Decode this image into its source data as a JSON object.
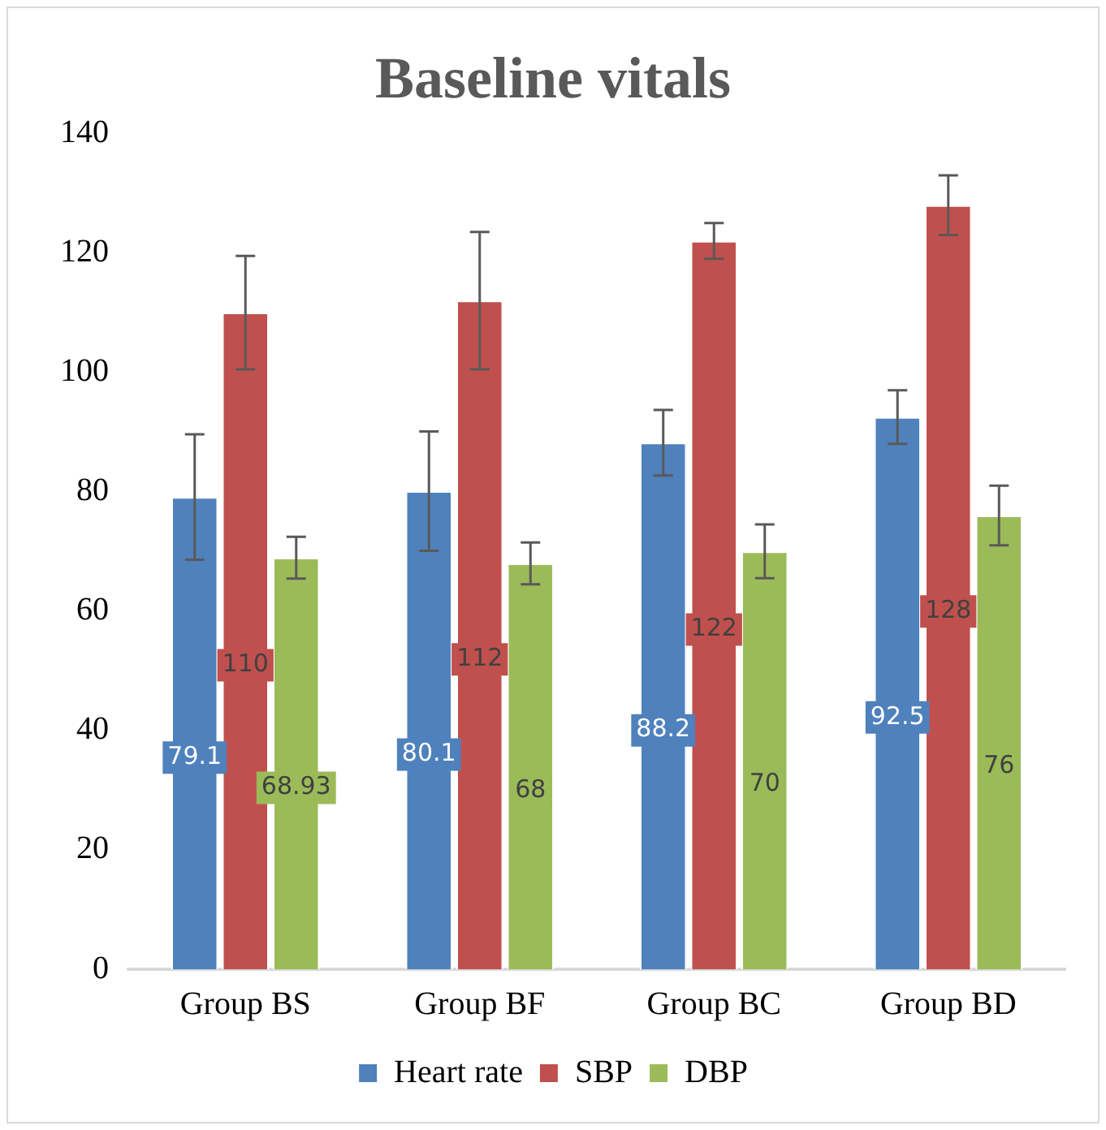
{
  "chart_data": {
    "type": "bar",
    "title": "Baseline vitals",
    "categories": [
      "Group BS",
      "Group BF",
      "Group BC",
      "Group BD"
    ],
    "series": [
      {
        "name": "Heart rate",
        "color": "#4f81bd",
        "values": [
          79.1,
          80.1,
          88.2,
          92.5
        ],
        "errors": [
          10.5,
          10,
          5.5,
          4.5
        ]
      },
      {
        "name": "SBP",
        "color": "#c0504d",
        "values": [
          110,
          112,
          122,
          128
        ],
        "errors": [
          9.5,
          11.5,
          3,
          5
        ]
      },
      {
        "name": "DBP",
        "color": "#9bbb59",
        "values": [
          68.93,
          68,
          70,
          76
        ],
        "errors": [
          3.5,
          3.5,
          4.5,
          5
        ]
      }
    ],
    "ylim": [
      0,
      140
    ],
    "yticks": [
      0,
      20,
      40,
      60,
      80,
      100,
      120,
      140
    ],
    "grid": false,
    "legend": "bottom",
    "data_labels": true
  }
}
